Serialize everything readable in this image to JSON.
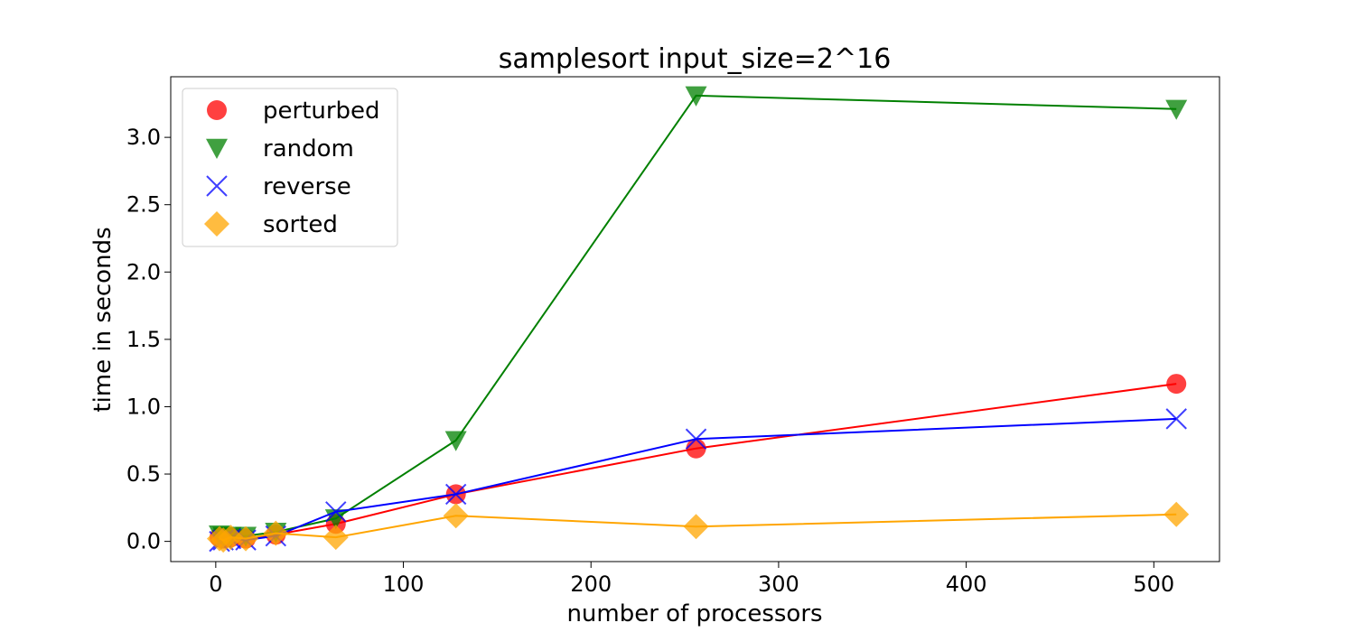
{
  "chart_data": {
    "type": "line",
    "title": "samplesort input_size=2^16",
    "xlabel": "number of processors",
    "ylabel": "time in seconds",
    "xlim": [
      -24,
      535
    ],
    "ylim": [
      -0.15,
      3.45
    ],
    "xticks": [
      0,
      100,
      200,
      300,
      400,
      500
    ],
    "yticks": [
      0.0,
      0.5,
      1.0,
      1.5,
      2.0,
      2.5,
      3.0
    ],
    "xtick_labels": [
      "0",
      "100",
      "200",
      "300",
      "400",
      "500"
    ],
    "ytick_labels": [
      "0.0",
      "0.5",
      "1.0",
      "1.5",
      "2.0",
      "2.5",
      "3.0"
    ],
    "x": [
      2,
      4,
      8,
      16,
      32,
      64,
      128,
      256,
      512
    ],
    "legend_position": "top-left",
    "grid": false,
    "series": [
      {
        "name": "perturbed",
        "color": "#ff0000",
        "marker": "circle",
        "values": [
          0.03,
          0.02,
          0.03,
          0.02,
          0.05,
          0.13,
          0.35,
          0.69,
          1.17
        ]
      },
      {
        "name": "random",
        "color": "#008000",
        "marker": "triangle-down",
        "values": [
          0.05,
          0.04,
          0.04,
          0.04,
          0.07,
          0.17,
          0.75,
          3.31,
          3.21
        ]
      },
      {
        "name": "reverse",
        "color": "#0000ff",
        "marker": "x",
        "values": [
          0.0,
          0.01,
          0.02,
          0.01,
          0.04,
          0.22,
          0.35,
          0.76,
          0.91
        ]
      },
      {
        "name": "sorted",
        "color": "#ffa500",
        "marker": "diamond",
        "values": [
          0.02,
          0.01,
          0.03,
          0.02,
          0.06,
          0.03,
          0.19,
          0.11,
          0.2
        ]
      }
    ]
  }
}
